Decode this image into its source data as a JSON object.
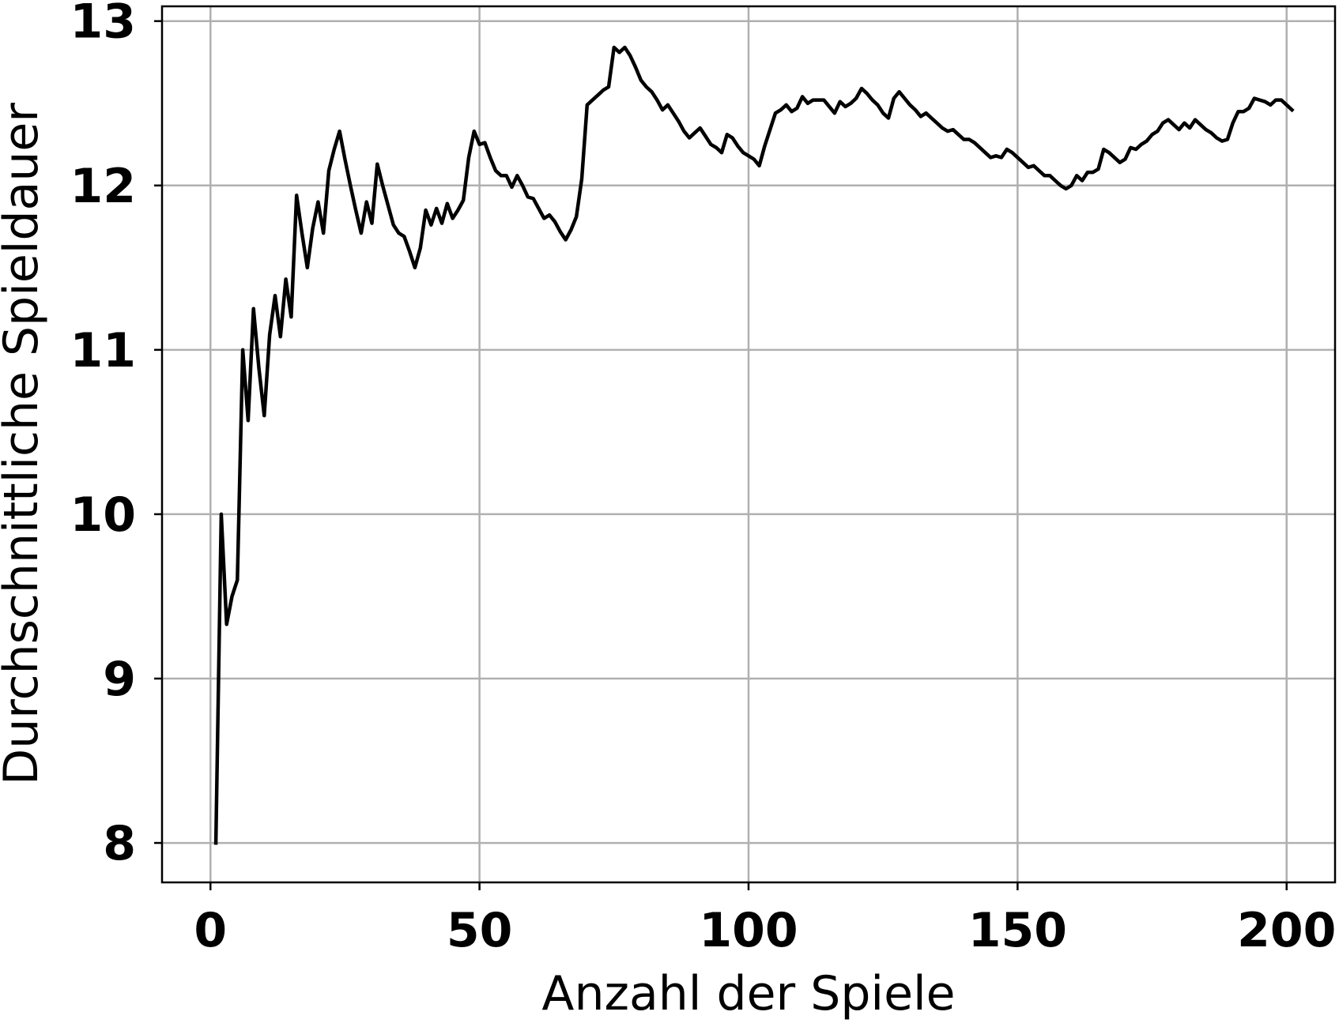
{
  "chart_data": {
    "type": "line",
    "title": "",
    "xlabel": "Anzahl der Spiele",
    "ylabel": "Durchschnittliche Spieldauer",
    "xlim": [
      -9,
      209
    ],
    "ylim": [
      7.76,
      13.09
    ],
    "xticks": [
      0,
      50,
      100,
      150,
      200
    ],
    "yticks": [
      8,
      9,
      10,
      11,
      12,
      13
    ],
    "grid": true,
    "legend": "none",
    "series": [
      {
        "color": "#000000",
        "points": [
          [
            1,
            8.0
          ],
          [
            2,
            10.0
          ],
          [
            3,
            9.33
          ],
          [
            4,
            9.5
          ],
          [
            5,
            9.6
          ],
          [
            6,
            11.0
          ],
          [
            7,
            10.57
          ],
          [
            8,
            11.25
          ],
          [
            9,
            10.89
          ],
          [
            10,
            10.6
          ],
          [
            11,
            11.09
          ],
          [
            12,
            11.33
          ],
          [
            13,
            11.08
          ],
          [
            14,
            11.43
          ],
          [
            15,
            11.2
          ],
          [
            16,
            11.94
          ],
          [
            17,
            11.71
          ],
          [
            18,
            11.5
          ],
          [
            19,
            11.74
          ],
          [
            20,
            11.9
          ],
          [
            21,
            11.71
          ],
          [
            22,
            12.09
          ],
          [
            23,
            12.22
          ],
          [
            24,
            12.33
          ],
          [
            25,
            12.16
          ],
          [
            26,
            12.0
          ],
          [
            27,
            11.85
          ],
          [
            28,
            11.71
          ],
          [
            29,
            11.9
          ],
          [
            30,
            11.77
          ],
          [
            31,
            12.13
          ],
          [
            32,
            12.0
          ],
          [
            33,
            11.88
          ],
          [
            34,
            11.76
          ],
          [
            35,
            11.71
          ],
          [
            36,
            11.69
          ],
          [
            37,
            11.6
          ],
          [
            38,
            11.5
          ],
          [
            39,
            11.62
          ],
          [
            40,
            11.85
          ],
          [
            41,
            11.76
          ],
          [
            42,
            11.86
          ],
          [
            43,
            11.77
          ],
          [
            44,
            11.89
          ],
          [
            45,
            11.8
          ],
          [
            46,
            11.85
          ],
          [
            47,
            11.91
          ],
          [
            48,
            12.17
          ],
          [
            49,
            12.33
          ],
          [
            50,
            12.25
          ],
          [
            51,
            12.26
          ],
          [
            52,
            12.17
          ],
          [
            53,
            12.09
          ],
          [
            54,
            12.06
          ],
          [
            55,
            12.06
          ],
          [
            56,
            11.99
          ],
          [
            57,
            12.06
          ],
          [
            58,
            12.0
          ],
          [
            59,
            11.93
          ],
          [
            60,
            11.92
          ],
          [
            61,
            11.86
          ],
          [
            62,
            11.8
          ],
          [
            63,
            11.82
          ],
          [
            64,
            11.78
          ],
          [
            65,
            11.72
          ],
          [
            66,
            11.67
          ],
          [
            67,
            11.73
          ],
          [
            68,
            11.81
          ],
          [
            69,
            12.04
          ],
          [
            70,
            12.49
          ],
          [
            71,
            12.52
          ],
          [
            72,
            12.55
          ],
          [
            73,
            12.58
          ],
          [
            74,
            12.6
          ],
          [
            75,
            12.84
          ],
          [
            76,
            12.81
          ],
          [
            77,
            12.84
          ],
          [
            78,
            12.79
          ],
          [
            79,
            12.72
          ],
          [
            80,
            12.64
          ],
          [
            81,
            12.6
          ],
          [
            82,
            12.57
          ],
          [
            83,
            12.52
          ],
          [
            84,
            12.46
          ],
          [
            85,
            12.49
          ],
          [
            86,
            12.44
          ],
          [
            87,
            12.39
          ],
          [
            88,
            12.33
          ],
          [
            89,
            12.29
          ],
          [
            90,
            12.32
          ],
          [
            91,
            12.35
          ],
          [
            92,
            12.3
          ],
          [
            93,
            12.25
          ],
          [
            94,
            12.23
          ],
          [
            95,
            12.2
          ],
          [
            96,
            12.31
          ],
          [
            97,
            12.29
          ],
          [
            98,
            12.24
          ],
          [
            99,
            12.2
          ],
          [
            100,
            12.18
          ],
          [
            101,
            12.16
          ],
          [
            102,
            12.12
          ],
          [
            103,
            12.24
          ],
          [
            104,
            12.34
          ],
          [
            105,
            12.44
          ],
          [
            106,
            12.46
          ],
          [
            107,
            12.49
          ],
          [
            108,
            12.45
          ],
          [
            109,
            12.47
          ],
          [
            110,
            12.54
          ],
          [
            111,
            12.5
          ],
          [
            112,
            12.52
          ],
          [
            113,
            12.52
          ],
          [
            114,
            12.52
          ],
          [
            115,
            12.48
          ],
          [
            116,
            12.44
          ],
          [
            117,
            12.51
          ],
          [
            118,
            12.48
          ],
          [
            119,
            12.5
          ],
          [
            120,
            12.53
          ],
          [
            121,
            12.59
          ],
          [
            122,
            12.56
          ],
          [
            123,
            12.52
          ],
          [
            124,
            12.49
          ],
          [
            125,
            12.44
          ],
          [
            126,
            12.41
          ],
          [
            127,
            12.53
          ],
          [
            128,
            12.57
          ],
          [
            129,
            12.53
          ],
          [
            130,
            12.49
          ],
          [
            131,
            12.46
          ],
          [
            132,
            12.42
          ],
          [
            133,
            12.44
          ],
          [
            134,
            12.41
          ],
          [
            135,
            12.38
          ],
          [
            136,
            12.35
          ],
          [
            137,
            12.33
          ],
          [
            138,
            12.34
          ],
          [
            139,
            12.31
          ],
          [
            140,
            12.28
          ],
          [
            141,
            12.28
          ],
          [
            142,
            12.26
          ],
          [
            143,
            12.23
          ],
          [
            144,
            12.2
          ],
          [
            145,
            12.17
          ],
          [
            146,
            12.18
          ],
          [
            147,
            12.17
          ],
          [
            148,
            12.22
          ],
          [
            149,
            12.2
          ],
          [
            150,
            12.17
          ],
          [
            151,
            12.14
          ],
          [
            152,
            12.11
          ],
          [
            153,
            12.12
          ],
          [
            154,
            12.09
          ],
          [
            155,
            12.06
          ],
          [
            156,
            12.06
          ],
          [
            157,
            12.03
          ],
          [
            158,
            12.0
          ],
          [
            159,
            11.98
          ],
          [
            160,
            12.0
          ],
          [
            161,
            12.06
          ],
          [
            162,
            12.03
          ],
          [
            163,
            12.08
          ],
          [
            164,
            12.08
          ],
          [
            165,
            12.1
          ],
          [
            166,
            12.22
          ],
          [
            167,
            12.2
          ],
          [
            168,
            12.17
          ],
          [
            169,
            12.14
          ],
          [
            170,
            12.16
          ],
          [
            171,
            12.23
          ],
          [
            172,
            12.22
          ],
          [
            173,
            12.25
          ],
          [
            174,
            12.27
          ],
          [
            175,
            12.31
          ],
          [
            176,
            12.33
          ],
          [
            177,
            12.38
          ],
          [
            178,
            12.4
          ],
          [
            179,
            12.37
          ],
          [
            180,
            12.34
          ],
          [
            181,
            12.38
          ],
          [
            182,
            12.35
          ],
          [
            183,
            12.4
          ],
          [
            184,
            12.37
          ],
          [
            185,
            12.34
          ],
          [
            186,
            12.32
          ],
          [
            187,
            12.29
          ],
          [
            188,
            12.27
          ],
          [
            189,
            12.28
          ],
          [
            190,
            12.38
          ],
          [
            191,
            12.45
          ],
          [
            192,
            12.45
          ],
          [
            193,
            12.47
          ],
          [
            194,
            12.53
          ],
          [
            195,
            12.52
          ],
          [
            196,
            12.51
          ],
          [
            197,
            12.49
          ],
          [
            198,
            12.52
          ],
          [
            199,
            12.52
          ],
          [
            200,
            12.49
          ],
          [
            201,
            12.46
          ]
        ]
      }
    ]
  }
}
